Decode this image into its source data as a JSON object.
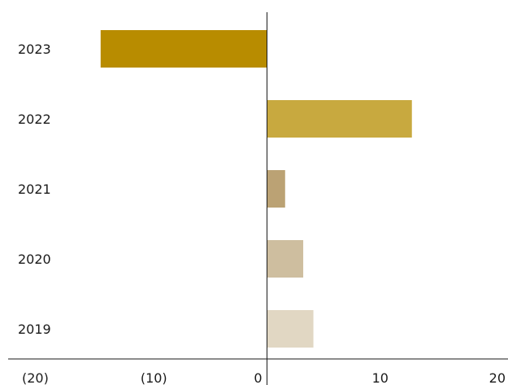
{
  "chart_data": {
    "type": "bar",
    "orientation": "horizontal",
    "title": "",
    "xlabel": "",
    "ylabel": "",
    "categories": [
      "2023",
      "2022",
      "2021",
      "2020",
      "2019"
    ],
    "values": [
      -14.7,
      12.8,
      1.6,
      3.2,
      4.1
    ],
    "colors": [
      "#b88c00",
      "#c8a93f",
      "#bba274",
      "#cebe9f",
      "#e1d7c3"
    ],
    "xlim": [
      -20,
      20
    ],
    "x_ticks": [
      -20,
      -10,
      0,
      10,
      20
    ],
    "x_tick_labels": [
      "(20)",
      "(10)",
      "0",
      "10",
      "20"
    ],
    "grid": false,
    "legend": "none"
  }
}
